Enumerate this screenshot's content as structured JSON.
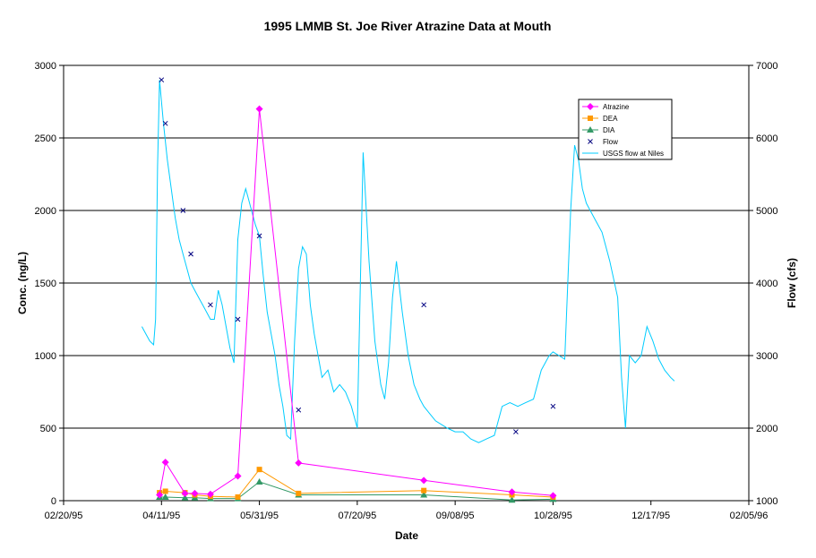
{
  "chart_data": {
    "type": "line",
    "title": "1995 LMMB  St. Joe River Atrazine Data at Mouth",
    "xlabel": "Date",
    "ylabel": "Conc. (ng/L)",
    "y2label": "Flow (cfs)",
    "xlim": [
      "1995-02-20",
      "1996-02-05"
    ],
    "ylim": [
      0,
      3000
    ],
    "y2lim": [
      1000,
      7000
    ],
    "x_ticks": [
      "02/20/95",
      "04/11/95",
      "05/31/95",
      "07/20/95",
      "09/08/95",
      "10/28/95",
      "12/17/95",
      "02/05/96"
    ],
    "y_ticks": [
      "0",
      "500",
      "1000",
      "1500",
      "2000",
      "2500",
      "3000"
    ],
    "y2_ticks": [
      "1000",
      "2000",
      "3000",
      "4000",
      "5000",
      "6000",
      "7000"
    ],
    "grid": true,
    "legend_position": "top-right",
    "colors": {
      "atrazine": "#ff00ff",
      "dea": "#ff9900",
      "dia": "#339966",
      "flow": "#000080",
      "usgs": "#00ccff"
    },
    "series": [
      {
        "name": "Atrazine",
        "axis": "left",
        "marker": "diamond",
        "x": [
          "1995-04-10",
          "1995-04-13",
          "1995-04-23",
          "1995-04-28",
          "1995-05-06",
          "1995-05-20",
          "1995-05-31",
          "1995-06-20",
          "1995-08-23",
          "1995-10-07",
          "1995-10-28"
        ],
        "y": [
          40,
          265,
          50,
          50,
          45,
          170,
          2700,
          260,
          140,
          60,
          35
        ]
      },
      {
        "name": "DEA",
        "axis": "left",
        "marker": "square",
        "x": [
          "1995-04-10",
          "1995-04-13",
          "1995-04-23",
          "1995-04-28",
          "1995-05-06",
          "1995-05-20",
          "1995-05-31",
          "1995-06-20",
          "1995-08-23",
          "1995-10-07",
          "1995-10-28"
        ],
        "y": [
          55,
          65,
          55,
          40,
          30,
          25,
          215,
          50,
          70,
          40,
          25
        ]
      },
      {
        "name": "DIA",
        "axis": "left",
        "marker": "triangle",
        "x": [
          "1995-04-10",
          "1995-04-13",
          "1995-04-23",
          "1995-04-28",
          "1995-05-06",
          "1995-05-20",
          "1995-05-31",
          "1995-06-20",
          "1995-08-23",
          "1995-10-07",
          "1995-10-28"
        ],
        "y": [
          25,
          25,
          20,
          20,
          15,
          15,
          130,
          40,
          40,
          5,
          10
        ]
      },
      {
        "name": "Flow",
        "axis": "right",
        "marker": "x",
        "x": [
          "1995-04-11",
          "1995-04-13",
          "1995-04-22",
          "1995-04-26",
          "1995-05-06",
          "1995-05-20",
          "1995-05-31",
          "1995-06-20",
          "1995-08-23",
          "1995-10-09",
          "1995-10-28"
        ],
        "y": [
          6800,
          6200,
          5000,
          4400,
          3700,
          3500,
          4650,
          2250,
          3700,
          1950,
          2300
        ]
      },
      {
        "name": "USGS flow at Niles",
        "axis": "right",
        "marker": "none",
        "x": [
          "1995-04-01",
          "1995-04-03",
          "1995-04-05",
          "1995-04-07",
          "1995-04-08",
          "1995-04-09",
          "1995-04-10",
          "1995-04-11",
          "1995-04-12",
          "1995-04-14",
          "1995-04-16",
          "1995-04-18",
          "1995-04-20",
          "1995-04-22",
          "1995-04-24",
          "1995-04-26",
          "1995-04-28",
          "1995-04-30",
          "1995-05-02",
          "1995-05-04",
          "1995-05-06",
          "1995-05-08",
          "1995-05-10",
          "1995-05-12",
          "1995-05-14",
          "1995-05-16",
          "1995-05-18",
          "1995-05-20",
          "1995-05-22",
          "1995-05-24",
          "1995-05-25",
          "1995-05-27",
          "1995-05-29",
          "1995-05-31",
          "1995-06-02",
          "1995-06-04",
          "1995-06-06",
          "1995-06-08",
          "1995-06-10",
          "1995-06-12",
          "1995-06-14",
          "1995-06-16",
          "1995-06-18",
          "1995-06-20",
          "1995-06-22",
          "1995-06-24",
          "1995-06-26",
          "1995-06-28",
          "1995-06-30",
          "1995-07-02",
          "1995-07-05",
          "1995-07-08",
          "1995-07-11",
          "1995-07-14",
          "1995-07-17",
          "1995-07-20",
          "1995-07-23",
          "1995-07-26",
          "1995-07-29",
          "1995-08-01",
          "1995-08-03",
          "1995-08-05",
          "1995-08-07",
          "1995-08-09",
          "1995-08-12",
          "1995-08-15",
          "1995-08-18",
          "1995-08-21",
          "1995-08-23",
          "1995-08-26",
          "1995-08-29",
          "1995-09-01",
          "1995-09-04",
          "1995-09-08",
          "1995-09-12",
          "1995-09-16",
          "1995-09-20",
          "1995-09-24",
          "1995-09-28",
          "1995-10-02",
          "1995-10-06",
          "1995-10-10",
          "1995-10-14",
          "1995-10-18",
          "1995-10-22",
          "1995-10-26",
          "1995-10-28",
          "1995-10-31",
          "1995-11-03",
          "1995-11-06",
          "1995-11-08",
          "1995-11-10",
          "1995-11-12",
          "1995-11-14",
          "1995-11-18",
          "1995-11-22",
          "1995-11-26",
          "1995-11-30",
          "1995-12-02",
          "1995-12-04",
          "1995-12-06",
          "1995-12-09",
          "1995-12-12",
          "1995-12-15",
          "1995-12-18",
          "1995-12-21",
          "1995-12-24",
          "1995-12-27",
          "1995-12-29"
        ],
        "y": [
          3400,
          3300,
          3200,
          3150,
          3500,
          5600,
          6800,
          6500,
          6200,
          5700,
          5300,
          4900,
          4600,
          4400,
          4200,
          4000,
          3900,
          3800,
          3700,
          3600,
          3500,
          3500,
          3900,
          3700,
          3400,
          3100,
          2900,
          4600,
          5100,
          5300,
          5200,
          5000,
          4800,
          4650,
          4100,
          3600,
          3300,
          3000,
          2600,
          2300,
          1900,
          1850,
          3200,
          4200,
          4500,
          4400,
          3700,
          3300,
          3000,
          2700,
          2800,
          2500,
          2600,
          2500,
          2300,
          2000,
          5800,
          4300,
          3200,
          2600,
          2400,
          2900,
          3800,
          4300,
          3600,
          3000,
          2600,
          2400,
          2300,
          2200,
          2100,
          2050,
          2000,
          1950,
          1950,
          1850,
          1800,
          1850,
          1900,
          2300,
          2350,
          2300,
          2350,
          2400,
          2800,
          3000,
          3050,
          3000,
          2950,
          5000,
          5900,
          5700,
          5300,
          5100,
          4900,
          4700,
          4300,
          3800,
          2700,
          2000,
          3000,
          2900,
          3000,
          3400,
          3200,
          2950,
          2800,
          2700,
          2650
        ]
      }
    ]
  }
}
